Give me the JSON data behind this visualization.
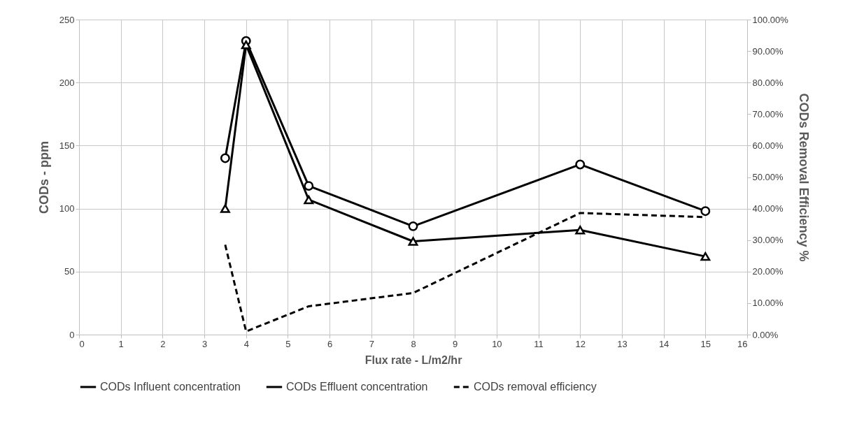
{
  "chart_data": {
    "type": "line",
    "xlabel": "Flux rate - L/m2/hr",
    "ylabel": "CODs - ppm",
    "y2label": "CODs Removal Efficiency %",
    "x": [
      3.5,
      4,
      5.5,
      8,
      12,
      15
    ],
    "series": [
      {
        "name": "CODs Influent concentration",
        "color": "#000000",
        "marker": "circle",
        "line_style": "solid",
        "values": [
          140,
          233,
          118,
          86,
          135,
          98
        ]
      },
      {
        "name": "CODs Effluent concentration",
        "color": "#000000",
        "marker": "triangle",
        "line_style": "solid",
        "values": [
          100,
          230,
          107,
          74,
          83,
          62
        ]
      },
      {
        "name": "CODs removal efficiency",
        "color": "#000000",
        "marker": "none",
        "line_style": "dashed",
        "axis": "y2",
        "values": [
          28.5,
          1,
          9,
          13.2,
          38.6,
          37.3
        ]
      }
    ],
    "xlim": [
      0,
      16
    ],
    "xticks": [
      0,
      1,
      2,
      3,
      4,
      5,
      6,
      7,
      8,
      9,
      10,
      11,
      12,
      13,
      14,
      15,
      16
    ],
    "ylim": [
      0,
      250
    ],
    "yticks": [
      0,
      50,
      100,
      150,
      200,
      250
    ],
    "y2lim": [
      0,
      100
    ],
    "y2ticks": [
      {
        "value": 0,
        "label": "0.00%"
      },
      {
        "value": 10,
        "label": "10.00%"
      },
      {
        "value": 20,
        "label": "20.00%"
      },
      {
        "value": 30,
        "label": "30.00%"
      },
      {
        "value": 40,
        "label": "40.00%"
      },
      {
        "value": 50,
        "label": "50.00%"
      },
      {
        "value": 60,
        "label": "60.00%"
      },
      {
        "value": 70,
        "label": "70.00%"
      },
      {
        "value": 80,
        "label": "80.00%"
      },
      {
        "value": 90,
        "label": "90.00%"
      },
      {
        "value": 100,
        "label": "100.00%"
      }
    ],
    "grid": true,
    "legend": "bottom"
  }
}
